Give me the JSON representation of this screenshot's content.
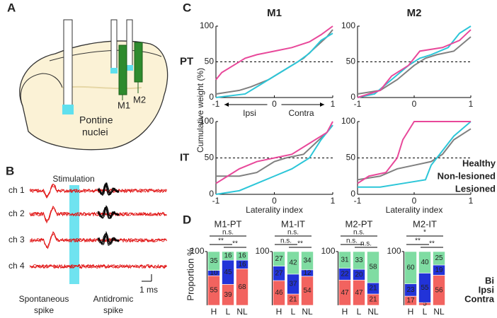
{
  "panel_labels": [
    "A",
    "B",
    "C",
    "D"
  ],
  "diagram": {
    "region": [
      "Pontine",
      "nuclei"
    ],
    "electrodes": [
      "M1",
      "M2"
    ]
  },
  "recording": {
    "stimulation": "Stimulation",
    "channels": [
      "ch 1",
      "ch 2",
      "ch 3",
      "ch 4"
    ],
    "scale": "1 ms",
    "spontaneous": [
      "Spontaneous",
      "spike"
    ],
    "antidromic": [
      "Antidromic",
      "spike"
    ]
  },
  "chart_data": [
    {
      "type": "line",
      "title": "M1",
      "row_label": "PT",
      "xlim": [
        -1,
        1
      ],
      "ylim": [
        0,
        100
      ],
      "xticks": [
        -1,
        0,
        1
      ],
      "yticks": [
        0,
        50,
        100
      ],
      "hline": 50,
      "x_annotations": {
        "left": "Ipsi",
        "right": "Contra"
      },
      "series": [
        {
          "color": "#808080",
          "x": [
            -1,
            -0.6,
            -0.4,
            -0.1,
            0.1,
            0.3,
            0.5,
            0.7,
            0.9,
            1
          ],
          "values": [
            5,
            10,
            15,
            25,
            35,
            45,
            55,
            70,
            85,
            95
          ]
        },
        {
          "color": "#2cc6d8",
          "x": [
            -1,
            -0.5,
            -0.3,
            -0.1,
            0.2,
            0.4,
            0.6,
            0.8,
            1
          ],
          "values": [
            0,
            5,
            15,
            25,
            40,
            50,
            62,
            80,
            90
          ]
        },
        {
          "color": "#e8489a",
          "x": [
            -1,
            -0.9,
            -0.7,
            -0.5,
            -0.3,
            0,
            0.3,
            0.6,
            0.8,
            1
          ],
          "values": [
            25,
            35,
            45,
            55,
            60,
            65,
            70,
            78,
            88,
            100
          ]
        }
      ]
    },
    {
      "type": "line",
      "title": "M2",
      "xlim": [
        -1,
        1
      ],
      "ylim": [
        0,
        100
      ],
      "xticks": [
        -1,
        0,
        1
      ],
      "yticks": [
        0,
        50,
        100
      ],
      "hline": 50,
      "series": [
        {
          "color": "#808080",
          "x": [
            -1,
            -0.6,
            -0.3,
            0,
            0.2,
            0.4,
            0.7,
            1
          ],
          "values": [
            5,
            10,
            25,
            45,
            55,
            60,
            65,
            85
          ]
        },
        {
          "color": "#2cc6d8",
          "x": [
            -1,
            -0.7,
            -0.4,
            -0.1,
            0.1,
            0.3,
            0.6,
            0.8,
            1
          ],
          "values": [
            0,
            5,
            25,
            45,
            55,
            60,
            70,
            90,
            100
          ]
        },
        {
          "color": "#e8489a",
          "x": [
            -1,
            -0.6,
            -0.4,
            -0.1,
            0.1,
            0.5,
            0.8,
            1
          ],
          "values": [
            0,
            10,
            30,
            45,
            65,
            70,
            80,
            95
          ]
        }
      ]
    },
    {
      "type": "line",
      "row_label": "IT",
      "y_label": "Cumulative weight (%)",
      "x_label": "Laterality index",
      "xlim": [
        -1,
        1
      ],
      "ylim": [
        0,
        100
      ],
      "xticks": [
        -1,
        0,
        1
      ],
      "yticks": [
        0,
        50,
        100
      ],
      "hline": 50,
      "series": [
        {
          "color": "#808080",
          "x": [
            -1,
            -0.6,
            -0.3,
            0,
            0.2,
            0.5,
            0.7,
            0.9,
            1
          ],
          "values": [
            25,
            25,
            30,
            45,
            50,
            55,
            70,
            85,
            95
          ]
        },
        {
          "color": "#2cc6d8",
          "x": [
            -1,
            -0.6,
            -0.3,
            0,
            0.3,
            0.6,
            0.8,
            1
          ],
          "values": [
            0,
            5,
            15,
            25,
            35,
            50,
            75,
            95
          ]
        },
        {
          "color": "#e8489a",
          "x": [
            -1,
            -0.8,
            -0.6,
            -0.3,
            0,
            0.3,
            0.6,
            0.9,
            1
          ],
          "values": [
            15,
            25,
            35,
            45,
            50,
            55,
            70,
            85,
            100
          ]
        }
      ]
    },
    {
      "type": "line",
      "x_label": "Laterality index",
      "xlim": [
        -1,
        1
      ],
      "ylim": [
        0,
        100
      ],
      "xticks": [
        -1,
        0,
        1
      ],
      "yticks": [
        0,
        50,
        100
      ],
      "hline": 50,
      "series": [
        {
          "name": "Healthy",
          "color": "#808080",
          "x": [
            -1,
            -0.6,
            -0.3,
            0,
            0.3,
            0.5,
            0.7,
            1
          ],
          "values": [
            20,
            25,
            35,
            40,
            45,
            55,
            75,
            90
          ]
        },
        {
          "name": "Non-lesioned",
          "color": "#2cc6d8",
          "x": [
            -1,
            -0.6,
            -0.2,
            0.2,
            0.3,
            0.5,
            0.7,
            1
          ],
          "values": [
            10,
            10,
            15,
            20,
            40,
            60,
            80,
            100
          ]
        },
        {
          "name": "Lesioned",
          "color": "#e8489a",
          "x": [
            -1,
            -0.8,
            -0.5,
            -0.3,
            -0.2,
            0,
            1
          ],
          "values": [
            15,
            25,
            30,
            50,
            75,
            100,
            100
          ]
        }
      ]
    },
    {
      "type": "bar",
      "stacked": true,
      "title": "M1-PT",
      "y_label": "Proportion %",
      "categories": [
        "H",
        "L",
        "NL"
      ],
      "ylim": [
        0,
        100
      ],
      "yticks": [
        100
      ],
      "series": [
        {
          "color": "#f2635f",
          "values": [
            55,
            39,
            68
          ]
        },
        {
          "color": "#2233d8",
          "values": [
            10,
            45,
            16
          ]
        },
        {
          "color": "#7fdca2",
          "values": [
            35,
            16,
            16
          ]
        }
      ],
      "brackets": [
        {
          "text": "n.s.",
          "between": [
            "H",
            "NL"
          ]
        },
        {
          "text": "**",
          "between": [
            "H",
            "L"
          ]
        },
        {
          "text": "**",
          "between": [
            "L",
            "NL"
          ]
        }
      ]
    },
    {
      "type": "bar",
      "stacked": true,
      "title": "M1-IT",
      "categories": [
        "H",
        "L",
        "NL"
      ],
      "ylim": [
        0,
        100
      ],
      "yticks": [
        100
      ],
      "series": [
        {
          "color": "#f2635f",
          "values": [
            46,
            21,
            54
          ]
        },
        {
          "color": "#2233d8",
          "values": [
            27,
            37,
            12
          ]
        },
        {
          "color": "#7fdca2",
          "values": [
            27,
            42,
            34
          ]
        }
      ],
      "brackets": [
        {
          "text": "n.s.",
          "between": [
            "H",
            "NL"
          ]
        },
        {
          "text": "n.s.",
          "between": [
            "H",
            "L"
          ]
        },
        {
          "text": "**",
          "between": [
            "L",
            "NL"
          ]
        }
      ]
    },
    {
      "type": "bar",
      "stacked": true,
      "title": "M2-PT",
      "categories": [
        "H",
        "L",
        "NL"
      ],
      "ylim": [
        0,
        100
      ],
      "yticks": [
        100
      ],
      "series": [
        {
          "color": "#f2635f",
          "values": [
            47,
            47,
            21
          ]
        },
        {
          "color": "#2233d8",
          "values": [
            22,
            20,
            21
          ]
        },
        {
          "color": "#7fdca2",
          "values": [
            31,
            33,
            58
          ]
        }
      ],
      "brackets": [
        {
          "text": "n.s.",
          "between": [
            "H",
            "NL"
          ]
        },
        {
          "text": "n.s.",
          "between": [
            "H",
            "L"
          ]
        },
        {
          "text": "n.s.",
          "between": [
            "L",
            "NL"
          ]
        }
      ]
    },
    {
      "type": "bar",
      "stacked": true,
      "title": "M2-IT",
      "categories": [
        "H",
        "L",
        "NL"
      ],
      "ylim": [
        0,
        100
      ],
      "yticks": [
        100
      ],
      "series": [
        {
          "name": "Contra",
          "color": "#f2635f",
          "values": [
            17,
            5,
            56
          ]
        },
        {
          "name": "Ipsi",
          "color": "#2233d8",
          "values": [
            23,
            55,
            19
          ]
        },
        {
          "name": "Bi",
          "color": "#7fdca2",
          "values": [
            60,
            40,
            25
          ]
        }
      ],
      "brackets": [
        {
          "text": "*",
          "between": [
            "H",
            "NL"
          ]
        },
        {
          "text": "**",
          "between": [
            "H",
            "L"
          ]
        },
        {
          "text": "**",
          "between": [
            "L",
            "NL"
          ]
        }
      ]
    }
  ]
}
